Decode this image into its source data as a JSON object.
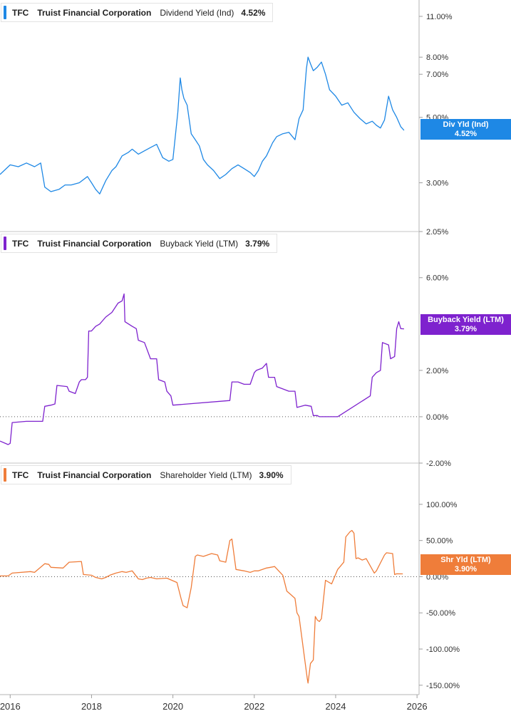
{
  "chart_data": [
    {
      "type": "line",
      "title": "TFC Truist Financial Corporation Dividend Yield (Ind) 4.52%",
      "ticker": "TFC",
      "company": "Truist Financial Corporation",
      "metric": "Dividend Yield (Ind)",
      "current_value": "4.52%",
      "tag_label": "Div Yld (Ind)",
      "tag_value": "4.52%",
      "color": "#1e88e5",
      "y_scale": "log",
      "ylim": [
        2.05,
        12.5
      ],
      "y_ticks": [
        2.05,
        3.0,
        5.0,
        7.0,
        8.0,
        11.0
      ],
      "y_tick_labels": [
        "2.05%",
        "3.00%",
        "5.00%",
        "7.00%",
        "8.00%",
        "11.00%"
      ],
      "zero_line": false,
      "series": [
        {
          "name": "Dividend Yield (Ind)",
          "x": [
            2015.75,
            2016.0,
            2016.2,
            2016.4,
            2016.6,
            2016.75,
            2016.85,
            2017.0,
            2017.2,
            2017.35,
            2017.5,
            2017.7,
            2017.9,
            2018.0,
            2018.1,
            2018.2,
            2018.35,
            2018.5,
            2018.6,
            2018.75,
            2018.9,
            2019.0,
            2019.15,
            2019.3,
            2019.45,
            2019.6,
            2019.75,
            2019.9,
            2020.0,
            2020.12,
            2020.18,
            2020.22,
            2020.27,
            2020.35,
            2020.45,
            2020.55,
            2020.65,
            2020.75,
            2020.85,
            2021.0,
            2021.15,
            2021.3,
            2021.45,
            2021.6,
            2021.75,
            2021.9,
            2022.0,
            2022.1,
            2022.2,
            2022.3,
            2022.45,
            2022.55,
            2022.7,
            2022.85,
            2023.0,
            2023.1,
            2023.2,
            2023.28,
            2023.32,
            2023.38,
            2023.45,
            2023.55,
            2023.65,
            2023.75,
            2023.85,
            2024.0,
            2024.15,
            2024.3,
            2024.45,
            2024.6,
            2024.75,
            2024.9,
            2025.0,
            2025.1,
            2025.2,
            2025.3,
            2025.4,
            2025.5,
            2025.6,
            2025.68
          ],
          "values": [
            3.2,
            3.45,
            3.4,
            3.5,
            3.4,
            3.5,
            2.9,
            2.8,
            2.85,
            2.95,
            2.95,
            3.0,
            3.15,
            3.0,
            2.85,
            2.75,
            3.05,
            3.3,
            3.4,
            3.7,
            3.8,
            3.9,
            3.75,
            3.85,
            3.95,
            4.05,
            3.65,
            3.55,
            3.6,
            5.2,
            6.8,
            6.2,
            5.8,
            5.5,
            4.4,
            4.2,
            4.0,
            3.6,
            3.45,
            3.3,
            3.1,
            3.2,
            3.35,
            3.45,
            3.35,
            3.25,
            3.15,
            3.3,
            3.55,
            3.7,
            4.1,
            4.3,
            4.4,
            4.45,
            4.2,
            4.95,
            5.3,
            7.3,
            8.0,
            7.6,
            7.2,
            7.4,
            7.7,
            7.0,
            6.2,
            5.9,
            5.5,
            5.6,
            5.2,
            4.95,
            4.75,
            4.85,
            4.7,
            4.6,
            4.9,
            5.9,
            5.3,
            5.0,
            4.65,
            4.52
          ]
        }
      ]
    },
    {
      "type": "line",
      "title": "TFC Truist Financial Corporation Buyback Yield (LTM) 3.79%",
      "ticker": "TFC",
      "company": "Truist Financial Corporation",
      "metric": "Buyback Yield (LTM)",
      "current_value": "3.79%",
      "tag_label": "Buyback Yield (LTM)",
      "tag_value": "3.79%",
      "color": "#7e22ce",
      "y_scale": "linear",
      "ylim": [
        -2.0,
        7.99
      ],
      "y_ticks": [
        -2.0,
        0.0,
        2.0,
        6.0
      ],
      "y_tick_labels": [
        "-2.00%",
        "0.00%",
        "2.00%",
        "6.00%"
      ],
      "zero_line": true,
      "series": [
        {
          "name": "Buyback Yield (LTM)",
          "x": [
            2015.75,
            2015.95,
            2016.0,
            2016.05,
            2016.4,
            2016.8,
            2016.85,
            2017.0,
            2017.1,
            2017.15,
            2017.4,
            2017.45,
            2017.6,
            2017.7,
            2017.75,
            2017.85,
            2017.9,
            2017.93,
            2018.0,
            2018.1,
            2018.2,
            2018.35,
            2018.5,
            2018.65,
            2018.75,
            2018.8,
            2018.82,
            2019.0,
            2019.1,
            2019.15,
            2019.3,
            2019.45,
            2019.6,
            2019.65,
            2019.8,
            2019.85,
            2019.95,
            2020.0,
            2021.4,
            2021.45,
            2021.6,
            2021.75,
            2021.9,
            2022.0,
            2022.05,
            2022.2,
            2022.3,
            2022.35,
            2022.5,
            2022.55,
            2022.7,
            2022.85,
            2023.0,
            2023.05,
            2023.25,
            2023.4,
            2023.45,
            2023.55,
            2023.6,
            2024.05,
            2024.85,
            2024.9,
            2025.0,
            2025.1,
            2025.15,
            2025.3,
            2025.35,
            2025.45,
            2025.5,
            2025.55,
            2025.6,
            2025.68
          ],
          "values": [
            -1.05,
            -1.2,
            -1.15,
            -0.25,
            -0.2,
            -0.2,
            0.45,
            0.5,
            0.55,
            1.35,
            1.3,
            1.1,
            1.0,
            1.5,
            1.6,
            1.6,
            1.7,
            3.7,
            3.7,
            3.9,
            4.0,
            4.3,
            4.5,
            4.9,
            5.0,
            5.3,
            4.1,
            3.9,
            3.8,
            3.3,
            3.2,
            2.5,
            2.5,
            1.6,
            1.5,
            1.1,
            0.9,
            0.5,
            0.7,
            1.5,
            1.5,
            1.4,
            1.4,
            1.9,
            2.0,
            2.1,
            2.3,
            1.7,
            1.7,
            1.3,
            1.2,
            1.1,
            1.1,
            0.4,
            0.5,
            0.45,
            0.05,
            0.05,
            0.0,
            0.0,
            0.9,
            1.7,
            1.9,
            2.0,
            3.2,
            3.1,
            2.5,
            2.6,
            3.8,
            4.1,
            3.8,
            3.79
          ]
        }
      ]
    },
    {
      "type": "line",
      "title": "TFC Truist Financial Corporation Shareholder Yield (LTM) 3.90%",
      "ticker": "TFC",
      "company": "Truist Financial Corporation",
      "metric": "Shareholder Yield (LTM)",
      "current_value": "3.90%",
      "tag_label": "Shr Yld (LTM)",
      "tag_value": "3.90%",
      "color": "#ef7d3a",
      "y_scale": "linear",
      "ylim": [
        -163.0,
        157.0
      ],
      "y_ticks": [
        -150,
        -100,
        -50,
        0,
        50,
        100
      ],
      "y_tick_labels": [
        "-150.00%",
        "-100.00%",
        "-50.00%",
        "0.00%",
        "50.00%",
        "100.00%"
      ],
      "zero_line": true,
      "series": [
        {
          "name": "Shareholder Yield (LTM)",
          "x": [
            2015.75,
            2015.95,
            2016.05,
            2016.5,
            2016.6,
            2016.85,
            2016.95,
            2017.0,
            2017.3,
            2017.45,
            2017.75,
            2017.8,
            2018.0,
            2018.1,
            2018.25,
            2018.35,
            2018.45,
            2018.6,
            2018.75,
            2018.85,
            2019.0,
            2019.15,
            2019.25,
            2019.35,
            2019.45,
            2019.6,
            2019.85,
            2020.1,
            2020.2,
            2020.25,
            2020.35,
            2020.45,
            2020.55,
            2020.6,
            2020.75,
            2020.95,
            2021.1,
            2021.15,
            2021.3,
            2021.4,
            2021.45,
            2021.55,
            2021.75,
            2021.9,
            2022.0,
            2022.1,
            2022.3,
            2022.4,
            2022.5,
            2022.7,
            2022.8,
            2022.9,
            2023.0,
            2023.05,
            2023.1,
            2023.3,
            2023.32,
            2023.38,
            2023.45,
            2023.5,
            2023.55,
            2023.6,
            2023.65,
            2023.75,
            2023.9,
            2024.05,
            2024.2,
            2024.25,
            2024.35,
            2024.4,
            2024.45,
            2024.5,
            2024.55,
            2024.65,
            2024.75,
            2024.95,
            2025.0,
            2025.2,
            2025.25,
            2025.4,
            2025.45,
            2025.5,
            2025.65
          ],
          "values": [
            1,
            1,
            5,
            7,
            6,
            18,
            17,
            13,
            12,
            20,
            21,
            3,
            2,
            -1,
            -3,
            -1,
            2,
            5,
            7,
            6,
            8,
            -3,
            -4,
            -2,
            -1,
            -3,
            -2,
            -8,
            -30,
            -40,
            -43,
            -15,
            28,
            30,
            28,
            32,
            30,
            22,
            20,
            50,
            52,
            10,
            8,
            6,
            8,
            8,
            12,
            13,
            14,
            2,
            -20,
            -25,
            -30,
            -50,
            -55,
            -140,
            -147,
            -120,
            -115,
            -55,
            -60,
            -62,
            -58,
            -5,
            -10,
            10,
            20,
            55,
            62,
            64,
            60,
            25,
            26,
            23,
            25,
            5,
            8,
            30,
            33,
            32,
            3,
            4,
            3.9
          ]
        }
      ]
    }
  ],
  "x_axis": {
    "xlim": [
      2015.75,
      2026.05
    ],
    "ticks": [
      2016,
      2018,
      2020,
      2022,
      2024,
      2026
    ],
    "tick_labels": [
      "2016",
      "2018",
      "2020",
      "2022",
      "2024",
      "2026"
    ]
  }
}
